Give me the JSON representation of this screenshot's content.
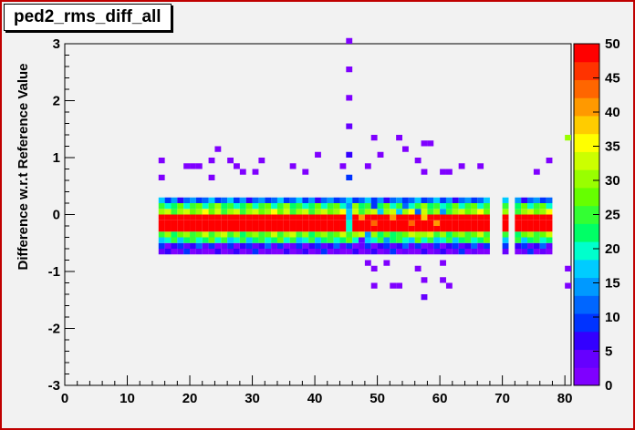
{
  "chart_data": {
    "type": "heatmap",
    "title": "ped2_rms_diff_all",
    "xlabel": "",
    "ylabel": "Difference w.r.t Reference Value",
    "xlim": [
      0,
      81
    ],
    "ylim": [
      -3,
      3
    ],
    "x_ticks": [
      0,
      10,
      20,
      30,
      40,
      50,
      60,
      70,
      80
    ],
    "y_ticks": [
      -3,
      -2,
      -1,
      0,
      1,
      2,
      3
    ],
    "colorbar": {
      "min": 0,
      "max": 50,
      "ticks": [
        0,
        5,
        10,
        15,
        20,
        25,
        30,
        35,
        40,
        45,
        50
      ]
    },
    "bin_width_x": 1,
    "bin_width_y": 0.1,
    "y_rows": [
      -0.7,
      -0.6,
      -0.5,
      -0.4,
      -0.3,
      -0.2,
      -0.1,
      0.0,
      0.1,
      0.2
    ],
    "row_values": [
      3,
      6,
      22,
      28,
      50,
      50,
      50,
      30,
      24,
      12
    ],
    "x_range": [
      15,
      81
    ],
    "gaps": [
      68,
      69,
      71,
      78,
      79,
      80
    ],
    "sparse": [
      {
        "x": 15,
        "y": 0.9,
        "v": 2
      },
      {
        "x": 15,
        "y": 0.6,
        "v": 2
      },
      {
        "x": 19,
        "y": 0.8,
        "v": 2
      },
      {
        "x": 20,
        "y": 0.8,
        "v": 2
      },
      {
        "x": 21,
        "y": 0.8,
        "v": 2
      },
      {
        "x": 23,
        "y": 0.9,
        "v": 2
      },
      {
        "x": 24,
        "y": 1.1,
        "v": 2
      },
      {
        "x": 23,
        "y": 0.6,
        "v": 2
      },
      {
        "x": 26,
        "y": 0.9,
        "v": 2
      },
      {
        "x": 27,
        "y": 0.8,
        "v": 2
      },
      {
        "x": 28,
        "y": 0.7,
        "v": 2
      },
      {
        "x": 30,
        "y": 0.7,
        "v": 2
      },
      {
        "x": 31,
        "y": 0.9,
        "v": 2
      },
      {
        "x": 36,
        "y": 0.8,
        "v": 2
      },
      {
        "x": 38,
        "y": 0.7,
        "v": 2
      },
      {
        "x": 40,
        "y": 1.0,
        "v": 2
      },
      {
        "x": 44,
        "y": 0.8,
        "v": 2
      },
      {
        "x": 45,
        "y": 3.0,
        "v": 2
      },
      {
        "x": 45,
        "y": 2.5,
        "v": 2
      },
      {
        "x": 45,
        "y": 2.0,
        "v": 2
      },
      {
        "x": 45,
        "y": 1.5,
        "v": 4
      },
      {
        "x": 45,
        "y": 1.0,
        "v": 6
      },
      {
        "x": 45,
        "y": 0.6,
        "v": 8
      },
      {
        "x": 49,
        "y": 1.3,
        "v": 2
      },
      {
        "x": 48,
        "y": 0.8,
        "v": 2
      },
      {
        "x": 50,
        "y": 1.0,
        "v": 2
      },
      {
        "x": 53,
        "y": 1.3,
        "v": 2
      },
      {
        "x": 54,
        "y": 1.1,
        "v": 2
      },
      {
        "x": 56,
        "y": 0.9,
        "v": 2
      },
      {
        "x": 57,
        "y": 1.2,
        "v": 2
      },
      {
        "x": 58,
        "y": 1.2,
        "v": 2
      },
      {
        "x": 57,
        "y": 0.7,
        "v": 2
      },
      {
        "x": 60,
        "y": 0.7,
        "v": 2
      },
      {
        "x": 61,
        "y": 0.7,
        "v": 2
      },
      {
        "x": 63,
        "y": 0.8,
        "v": 2
      },
      {
        "x": 66,
        "y": 0.8,
        "v": 2
      },
      {
        "x": 75,
        "y": 0.7,
        "v": 2
      },
      {
        "x": 77,
        "y": 0.9,
        "v": 2
      },
      {
        "x": 80,
        "y": 1.3,
        "v": 30
      },
      {
        "x": 48,
        "y": -0.9,
        "v": 2
      },
      {
        "x": 49,
        "y": -1.0,
        "v": 2
      },
      {
        "x": 49,
        "y": -1.3,
        "v": 2
      },
      {
        "x": 51,
        "y": -0.9,
        "v": 2
      },
      {
        "x": 52,
        "y": -1.3,
        "v": 2
      },
      {
        "x": 53,
        "y": -1.3,
        "v": 2
      },
      {
        "x": 56,
        "y": -1.0,
        "v": 2
      },
      {
        "x": 57,
        "y": -1.2,
        "v": 2
      },
      {
        "x": 57,
        "y": -1.5,
        "v": 4
      },
      {
        "x": 60,
        "y": -0.9,
        "v": 2
      },
      {
        "x": 60,
        "y": -1.2,
        "v": 2
      },
      {
        "x": 61,
        "y": -1.3,
        "v": 2
      },
      {
        "x": 80,
        "y": -1.0,
        "v": 2
      },
      {
        "x": 80,
        "y": -1.3,
        "v": 2
      }
    ],
    "band_overrides": [
      {
        "x": 45,
        "y": -0.1,
        "v": 16
      },
      {
        "x": 45,
        "y": -0.2,
        "v": 20
      },
      {
        "x": 45,
        "y": 0.0,
        "v": 18
      },
      {
        "x": 45,
        "y": -0.3,
        "v": 20
      },
      {
        "x": 45,
        "y": 0.1,
        "v": 14
      },
      {
        "x": 47,
        "y": -0.1,
        "v": 42
      },
      {
        "x": 49,
        "y": -0.2,
        "v": 44
      },
      {
        "x": 52,
        "y": -0.1,
        "v": 40
      },
      {
        "x": 55,
        "y": -0.2,
        "v": 44
      },
      {
        "x": 57,
        "y": -0.1,
        "v": 38
      },
      {
        "x": 59,
        "y": -0.2,
        "v": 42
      },
      {
        "x": 50,
        "y": 0.0,
        "v": 16
      },
      {
        "x": 53,
        "y": 0.0,
        "v": 18
      },
      {
        "x": 56,
        "y": 0.0,
        "v": 12
      },
      {
        "x": 60,
        "y": 0.0,
        "v": 14
      },
      {
        "x": 49,
        "y": 0.1,
        "v": 10
      },
      {
        "x": 54,
        "y": 0.1,
        "v": 12
      },
      {
        "x": 48,
        "y": -0.4,
        "v": 14
      },
      {
        "x": 52,
        "y": -0.4,
        "v": 22
      },
      {
        "x": 56,
        "y": -0.4,
        "v": 30
      },
      {
        "x": 59,
        "y": -0.4,
        "v": 26
      },
      {
        "x": 47,
        "y": -0.5,
        "v": 4
      },
      {
        "x": 51,
        "y": -0.5,
        "v": 14
      },
      {
        "x": 55,
        "y": -0.5,
        "v": 16
      }
    ]
  }
}
